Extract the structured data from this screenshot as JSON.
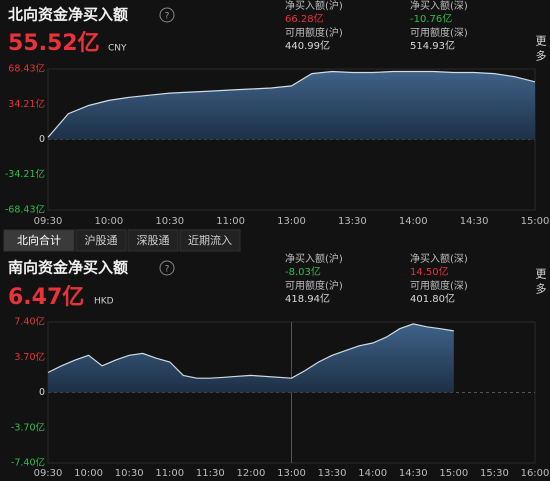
{
  "north": {
    "title": "北向资金净买入额",
    "help": "?",
    "total": "55.52亿",
    "currency": "CNY",
    "more": "更多",
    "stats": [
      {
        "label": "净买入额(沪)",
        "value": "66.28亿",
        "color": "#e8333a"
      },
      {
        "label": "净买入额(深)",
        "value": "-10.76亿",
        "color": "#2fbf4b"
      },
      {
        "label": "可用额度(沪)",
        "value": "440.99亿",
        "color": "#d8d8d8"
      },
      {
        "label": "可用额度(深)",
        "value": "514.93亿",
        "color": "#d8d8d8"
      }
    ]
  },
  "tabs": [
    "北向合计",
    "沪股通",
    "深股通",
    "近期流入"
  ],
  "south": {
    "title": "南向资金净买入额",
    "help": "?",
    "total": "6.47亿",
    "currency": "HKD",
    "more": "更多",
    "stats": [
      {
        "label": "净买入额(沪)",
        "value": "-8.03亿",
        "color": "#2fbf4b"
      },
      {
        "label": "净买入额(深)",
        "value": "14.50亿",
        "color": "#e8333a"
      },
      {
        "label": "可用额度(沪)",
        "value": "418.94亿",
        "color": "#d8d8d8"
      },
      {
        "label": "可用额度(深)",
        "value": "401.80亿",
        "color": "#d8d8d8"
      }
    ]
  },
  "chart_data": [
    {
      "type": "area",
      "categories": [
        "09:30",
        "09:40",
        "09:50",
        "10:00",
        "10:10",
        "10:20",
        "10:30",
        "10:40",
        "10:50",
        "11:00",
        "11:10",
        "11:20",
        "13:00",
        "13:10",
        "13:20",
        "13:30",
        "13:40",
        "13:50",
        "14:00",
        "14:10",
        "14:20",
        "14:30",
        "14:40",
        "14:50",
        "15:00"
      ],
      "values": [
        2,
        25,
        33,
        38,
        41,
        43,
        45,
        46,
        47,
        48,
        49,
        50,
        52,
        64,
        66,
        65,
        65,
        66,
        66,
        66,
        65,
        65,
        64,
        61,
        56
      ],
      "ylim": [
        -68.43,
        68.43
      ],
      "yticks": [
        {
          "value": 68.43,
          "label": "68.43亿"
        },
        {
          "value": 34.21,
          "label": "34.21亿"
        },
        0,
        {
          "value": -34.21,
          "label": "-34.21亿"
        },
        {
          "value": -68.43,
          "label": "-68.43亿"
        }
      ],
      "xticks": [
        "09:30",
        "10:00",
        "10:30",
        "11:00",
        "13:00",
        "13:30",
        "14:00",
        "14:30",
        "15:00"
      ],
      "color": "#d0dbe6"
    },
    {
      "type": "area",
      "categories": [
        "09:30",
        "09:40",
        "09:50",
        "10:00",
        "10:10",
        "10:20",
        "10:30",
        "10:40",
        "10:50",
        "11:00",
        "11:10",
        "11:20",
        "11:30",
        "11:40",
        "11:50",
        "12:00",
        "13:00",
        "13:10",
        "13:20",
        "13:30",
        "13:40",
        "13:50",
        "14:00",
        "14:10",
        "14:20",
        "14:30",
        "14:40",
        "14:50",
        "15:00",
        "15:10",
        "15:20",
        "15:30",
        "15:40",
        "15:50",
        "16:00"
      ],
      "values": [
        2.1,
        2.8,
        3.4,
        3.9,
        2.8,
        3.4,
        3.9,
        4.1,
        3.6,
        3.2,
        1.8,
        1.5,
        1.5,
        1.6,
        1.7,
        1.8,
        1.5,
        2.3,
        3.2,
        3.9,
        4.4,
        4.9,
        5.2,
        5.8,
        6.7,
        7.2,
        6.9,
        6.7,
        6.47,
        null,
        null,
        null,
        null,
        null,
        null
      ],
      "ylim": [
        -7.4,
        7.4
      ],
      "yticks": [
        {
          "value": 7.4,
          "label": "7.40亿"
        },
        {
          "value": 3.7,
          "label": "3.70亿"
        },
        0,
        {
          "value": -3.7,
          "label": "-3.70亿"
        },
        {
          "value": -7.4,
          "label": "-7.40亿"
        }
      ],
      "xticks": [
        "09:30",
        "10:00",
        "10:30",
        "11:00",
        "11:30",
        "12:00",
        "13:00",
        "13:30",
        "14:00",
        "14:30",
        "15:00",
        "15:30",
        "16:00"
      ],
      "color": "#d0dbe6"
    }
  ]
}
